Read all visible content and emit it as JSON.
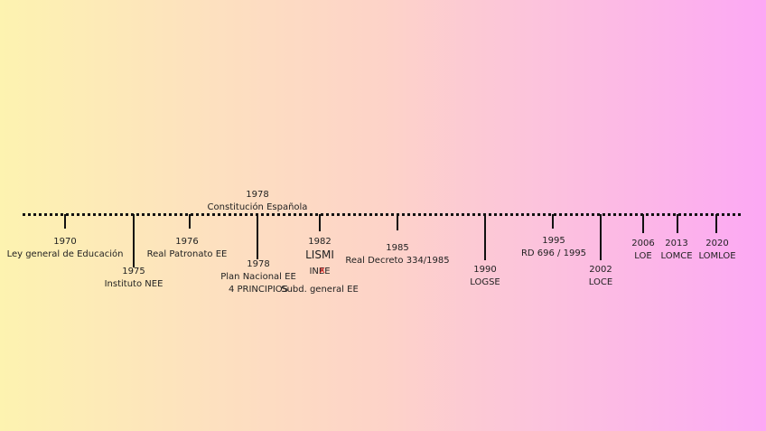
{
  "timeline": {
    "events": [
      {
        "year": "1970",
        "lines": [
          "Ley general de Educación"
        ]
      },
      {
        "year": "1975",
        "lines": [
          "Instituto NEE"
        ]
      },
      {
        "year": "1976",
        "lines": [
          "Real Patronato EE"
        ]
      },
      {
        "year": "1978",
        "lines": [
          "Constitución Española"
        ]
      },
      {
        "year": "1978",
        "lines": [
          "Plan Nacional EE",
          "4 PRINCIPIOS"
        ]
      },
      {
        "year": "1982",
        "lines": [
          "LISMI",
          "INEE",
          "Subd. general EE"
        ]
      },
      {
        "year": "1985",
        "lines": [
          "Real Decreto 334/1985"
        ]
      },
      {
        "year": "1990",
        "lines": [
          "LOGSE"
        ]
      },
      {
        "year": "1995",
        "lines": [
          "RD 696 / 1995"
        ]
      },
      {
        "year": "2002",
        "lines": [
          "LOCE"
        ]
      },
      {
        "year": "2006",
        "lines": [
          "LOE"
        ]
      },
      {
        "year": "2013",
        "lines": [
          "LOMCE"
        ]
      },
      {
        "year": "2020",
        "lines": [
          "LOMLOE"
        ]
      }
    ]
  }
}
